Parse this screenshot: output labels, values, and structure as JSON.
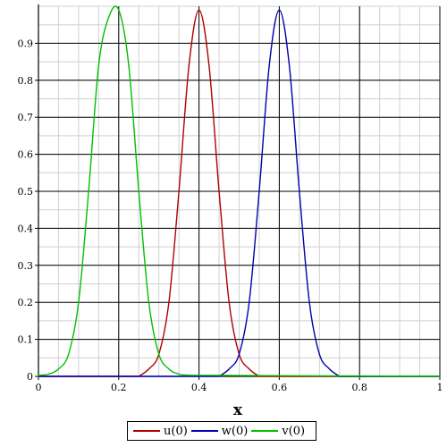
{
  "chart_data": {
    "type": "line",
    "xlabel": "x",
    "ylabel": "",
    "xlim": [
      0,
      1
    ],
    "ylim": [
      0,
      1
    ],
    "grid": true,
    "legend_position": "bottom",
    "x_ticks": [
      "0",
      "0.2",
      "0.4",
      "0.6",
      "0.8",
      "1"
    ],
    "y_ticks": [
      "0",
      "0.1",
      "0.2",
      "0.3",
      "0.4",
      "0.5",
      "0.6",
      "0.7",
      "0.8",
      "0.9"
    ],
    "series": [
      {
        "name": "u(0)",
        "color": "#b00000",
        "x": [
          0.25,
          0.275,
          0.3,
          0.325,
          0.35,
          0.375,
          0.4,
          0.425,
          0.45,
          0.475,
          0.5,
          0.525,
          0.55
        ],
        "y": [
          0.0,
          0.02,
          0.06,
          0.2,
          0.5,
          0.84,
          0.99,
          0.84,
          0.5,
          0.2,
          0.06,
          0.02,
          0.0
        ]
      },
      {
        "name": "w(0)",
        "color": "#0000b0",
        "x": [
          0.45,
          0.475,
          0.5,
          0.525,
          0.55,
          0.575,
          0.6,
          0.625,
          0.65,
          0.675,
          0.7,
          0.725,
          0.75
        ],
        "y": [
          0.0,
          0.02,
          0.06,
          0.2,
          0.5,
          0.84,
          0.99,
          0.84,
          0.5,
          0.2,
          0.06,
          0.02,
          0.0
        ]
      },
      {
        "name": "v(0)",
        "color": "#00c000",
        "x": [
          0.0,
          0.025,
          0.05,
          0.075,
          0.1,
          0.125,
          0.15,
          0.175,
          0.2,
          0.225,
          0.25,
          0.275,
          0.3,
          0.325,
          0.35,
          0.375
        ],
        "y": [
          0.003,
          0.006,
          0.02,
          0.06,
          0.2,
          0.5,
          0.84,
          0.97,
          0.99,
          0.84,
          0.5,
          0.2,
          0.06,
          0.02,
          0.006,
          0.003
        ]
      }
    ]
  }
}
